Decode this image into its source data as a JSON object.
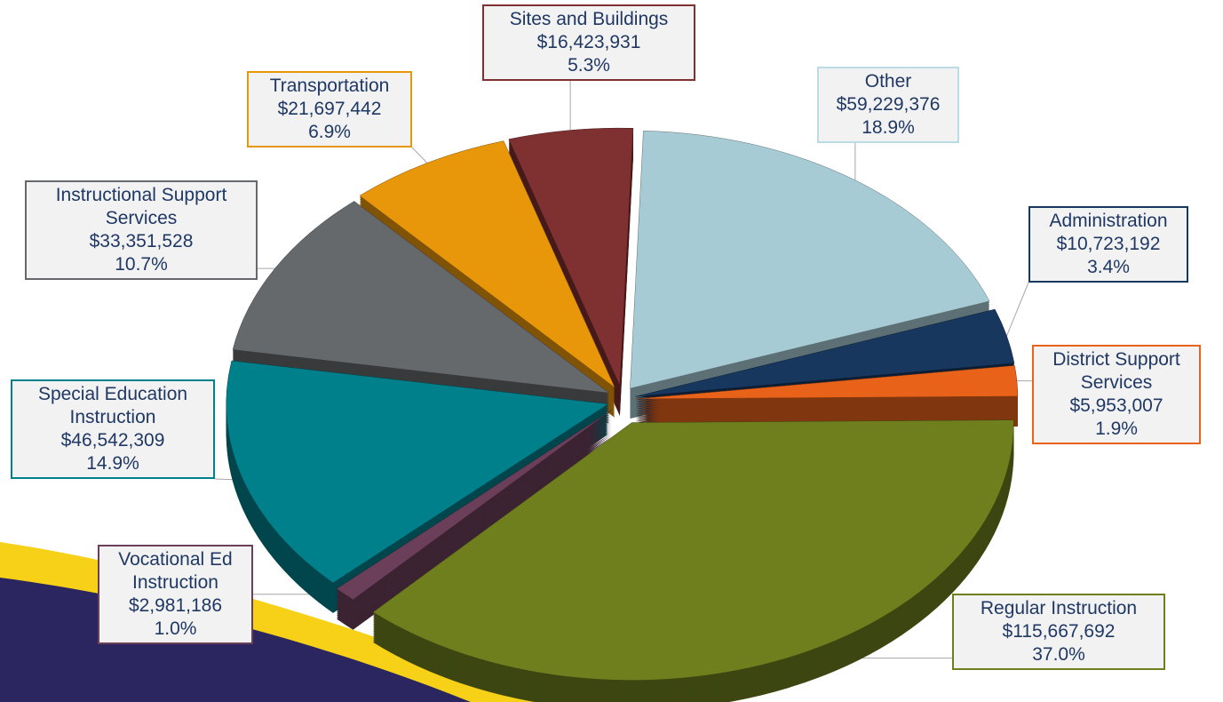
{
  "chart_data": {
    "type": "pie",
    "categories": [
      "Other",
      "Administration",
      "District Support Services",
      "Regular Instruction",
      "Vocational Ed Instruction",
      "Special Education Instruction",
      "Instructional Support Services",
      "Transportation",
      "Sites and Buildings"
    ],
    "values": [
      59229376,
      10723192,
      5953007,
      115667692,
      2981186,
      46542309,
      33351528,
      21697442,
      16423931
    ],
    "value_labels": [
      "$59,229,376",
      "$10,723,192",
      "$5,953,007",
      "$115,667,692",
      "$2,981,186",
      "$46,542,309",
      "$33,351,528",
      "$21,697,442",
      "$16,423,931"
    ],
    "percentages": [
      18.9,
      3.4,
      1.9,
      37.0,
      1.0,
      14.9,
      10.7,
      6.9,
      5.3
    ],
    "percentage_labels": [
      "18.9%",
      "3.4%",
      "1.9%",
      "37.0%",
      "1.0%",
      "14.9%",
      "10.7%",
      "6.9%",
      "5.3%"
    ],
    "colors": [
      "#a7cbd5",
      "#17375e",
      "#e8621a",
      "#6f7f1e",
      "#6b3f5a",
      "#00808a",
      "#66696c",
      "#e8960a",
      "#7f3030"
    ]
  }
}
